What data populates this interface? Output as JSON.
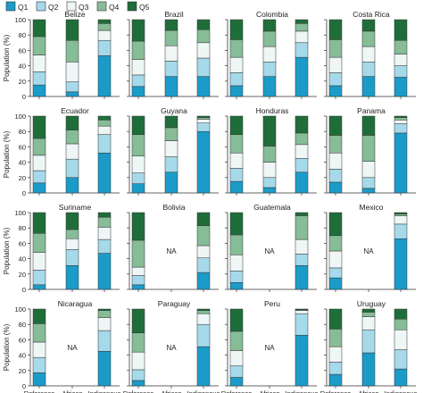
{
  "colors": {
    "Q1": "#1b9bc8",
    "Q2": "#a6d9ea",
    "Q3": "#eef6f6",
    "Q4": "#86bc96",
    "Q5": "#1f6e3a",
    "edge": "#333333",
    "na_text": "#222222"
  },
  "chart_data": {
    "type": "bar",
    "stacked": true,
    "layout": "small-multiples 4x4",
    "ylabel": "Population (%)",
    "ylim": [
      0,
      100
    ],
    "yticks": [
      0,
      20,
      40,
      60,
      80,
      100
    ],
    "categories": [
      "Reference",
      "African descent",
      "Indigenous"
    ],
    "category_labels": [
      [
        "Reference"
      ],
      [
        "African",
        "descent"
      ],
      [
        "Indigenous"
      ]
    ],
    "legend": {
      "position": "top-left",
      "entries": [
        "Q1",
        "Q2",
        "Q3",
        "Q4",
        "Q5"
      ]
    },
    "na_label": "NA",
    "panels": [
      {
        "country": "Belize",
        "bars": [
          [
            15,
            17,
            22,
            24,
            22
          ],
          [
            6,
            13,
            26,
            28,
            27
          ],
          [
            53,
            20,
            13,
            9,
            5
          ]
        ]
      },
      {
        "country": "Brazil",
        "bars": [
          [
            13,
            15,
            20,
            24,
            28
          ],
          [
            26,
            20,
            20,
            20,
            14
          ],
          [
            26,
            24,
            20,
            17,
            13
          ]
        ]
      },
      {
        "country": "Colombia",
        "bars": [
          [
            14,
            17,
            20,
            23,
            26
          ],
          [
            26,
            19,
            20,
            20,
            15
          ],
          [
            51,
            19,
            15,
            10,
            5
          ]
        ]
      },
      {
        "country": "Costa Rica",
        "bars": [
          [
            14,
            17,
            20,
            23,
            26
          ],
          [
            26,
            19,
            20,
            20,
            15
          ],
          [
            25,
            15,
            15,
            18,
            27
          ]
        ]
      },
      {
        "country": "Ecuador",
        "bars": [
          [
            13,
            16,
            20,
            22,
            29
          ],
          [
            20,
            24,
            20,
            18,
            18
          ],
          [
            52,
            24,
            11,
            8,
            5
          ]
        ]
      },
      {
        "country": "Guyana",
        "bars": [
          [
            12,
            14,
            22,
            28,
            24
          ],
          [
            27,
            20,
            21,
            17,
            15
          ],
          [
            80,
            11,
            5,
            2,
            2
          ]
        ]
      },
      {
        "country": "Honduras",
        "bars": [
          [
            15,
            17,
            20,
            24,
            24
          ],
          [
            7,
            13,
            20,
            21,
            39
          ],
          [
            27,
            18,
            18,
            15,
            22
          ]
        ]
      },
      {
        "country": "Panama",
        "bars": [
          [
            14,
            17,
            21,
            23,
            25
          ],
          [
            6,
            14,
            21,
            34,
            25
          ],
          [
            78,
            12,
            5,
            3,
            2
          ]
        ]
      },
      {
        "country": "Suriname",
        "bars": [
          [
            6,
            19,
            23,
            25,
            27
          ],
          [
            31,
            21,
            14,
            12,
            22
          ],
          [
            47,
            18,
            16,
            13,
            6
          ]
        ]
      },
      {
        "country": "Bolivia",
        "bars": [
          [
            6,
            12,
            11,
            35,
            36
          ],
          null,
          [
            22,
            19,
            16,
            26,
            17
          ]
        ]
      },
      {
        "country": "Guatemala",
        "bars": [
          [
            9,
            15,
            21,
            26,
            29
          ],
          null,
          [
            31,
            15,
            19,
            31,
            4
          ]
        ]
      },
      {
        "country": "Mexico",
        "bars": [
          [
            15,
            13,
            22,
            20,
            30
          ],
          null,
          [
            66,
            19,
            11,
            2,
            2
          ]
        ]
      },
      {
        "country": "Nicaragua",
        "bars": [
          [
            17,
            20,
            20,
            24,
            19
          ],
          null,
          [
            45,
            27,
            17,
            9,
            2
          ]
        ]
      },
      {
        "country": "Paraguay",
        "bars": [
          [
            7,
            14,
            23,
            25,
            31
          ],
          null,
          [
            51,
            29,
            14,
            4,
            2
          ]
        ]
      },
      {
        "country": "Peru",
        "bars": [
          [
            11,
            15,
            20,
            25,
            29
          ],
          null,
          [
            66,
            28,
            4,
            1,
            1
          ]
        ]
      },
      {
        "country": "Uruguay",
        "bars": [
          [
            15,
            16,
            20,
            23,
            26
          ],
          [
            43,
            30,
            17,
            6,
            4
          ],
          [
            22,
            25,
            26,
            14,
            13
          ]
        ]
      }
    ]
  }
}
